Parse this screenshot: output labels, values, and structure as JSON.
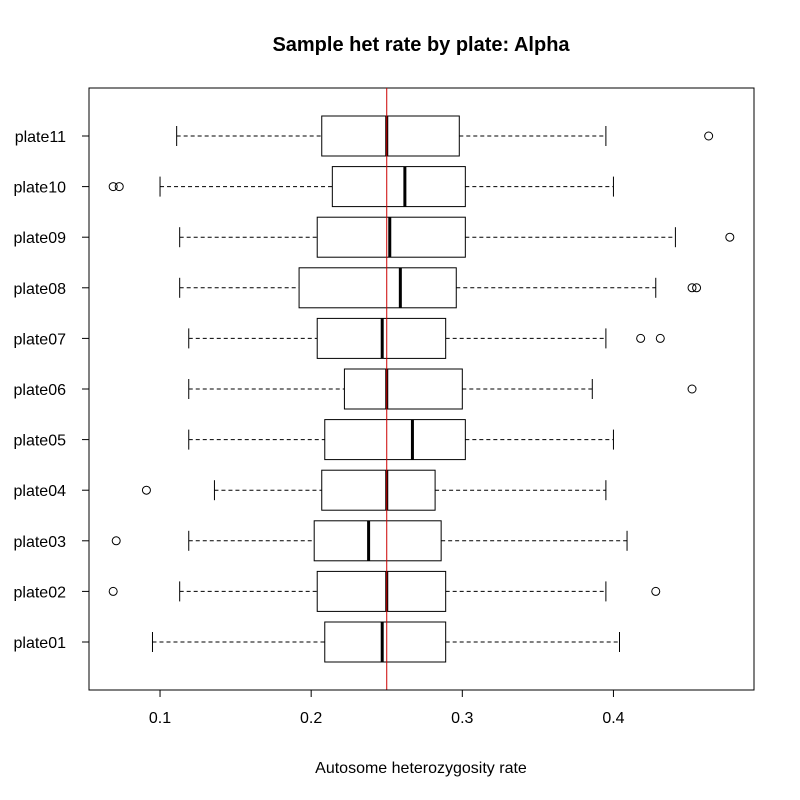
{
  "chart_data": {
    "type": "boxplot",
    "orientation": "horizontal",
    "title": "Sample het rate by plate:  Alpha",
    "xlabel": "Autosome heterozygosity rate",
    "ylabel": "",
    "xlim": [
      0.053,
      0.493
    ],
    "xticks": [
      0.1,
      0.2,
      0.3,
      0.4
    ],
    "xtick_labels": [
      "0.1",
      "0.2",
      "0.3",
      "0.4"
    ],
    "grid": false,
    "colors": {
      "reference_line": "#cc0000",
      "box_stroke": "#000000",
      "median": "#000000"
    },
    "reference_line": {
      "x": 0.25
    },
    "categories": [
      "plate01",
      "plate02",
      "plate03",
      "plate04",
      "plate05",
      "plate06",
      "plate07",
      "plate08",
      "plate09",
      "plate10",
      "plate11"
    ],
    "boxes": [
      {
        "label": "plate01",
        "whisker_low": 0.095,
        "q1": 0.209,
        "median": 0.247,
        "q3": 0.289,
        "whisker_high": 0.404,
        "outliers": []
      },
      {
        "label": "plate02",
        "whisker_low": 0.113,
        "q1": 0.204,
        "median": 0.25,
        "q3": 0.289,
        "whisker_high": 0.395,
        "outliers": [
          0.069,
          0.428
        ]
      },
      {
        "label": "plate03",
        "whisker_low": 0.119,
        "q1": 0.202,
        "median": 0.238,
        "q3": 0.286,
        "whisker_high": 0.409,
        "outliers": [
          0.071
        ]
      },
      {
        "label": "plate04",
        "whisker_low": 0.136,
        "q1": 0.207,
        "median": 0.25,
        "q3": 0.282,
        "whisker_high": 0.395,
        "outliers": [
          0.091
        ]
      },
      {
        "label": "plate05",
        "whisker_low": 0.119,
        "q1": 0.209,
        "median": 0.267,
        "q3": 0.302,
        "whisker_high": 0.4,
        "outliers": []
      },
      {
        "label": "plate06",
        "whisker_low": 0.119,
        "q1": 0.222,
        "median": 0.25,
        "q3": 0.3,
        "whisker_high": 0.386,
        "outliers": [
          0.452
        ]
      },
      {
        "label": "plate07",
        "whisker_low": 0.119,
        "q1": 0.204,
        "median": 0.247,
        "q3": 0.289,
        "whisker_high": 0.395,
        "outliers": [
          0.418,
          0.431
        ]
      },
      {
        "label": "plate08",
        "whisker_low": 0.113,
        "q1": 0.192,
        "median": 0.259,
        "q3": 0.296,
        "whisker_high": 0.428,
        "outliers": [
          0.452,
          0.455
        ]
      },
      {
        "label": "plate09",
        "whisker_low": 0.113,
        "q1": 0.204,
        "median": 0.252,
        "q3": 0.302,
        "whisker_high": 0.441,
        "outliers": [
          0.477
        ]
      },
      {
        "label": "plate10",
        "whisker_low": 0.1,
        "q1": 0.214,
        "median": 0.262,
        "q3": 0.302,
        "whisker_high": 0.4,
        "outliers": [
          0.069,
          0.073
        ]
      },
      {
        "label": "plate11",
        "whisker_low": 0.111,
        "q1": 0.207,
        "median": 0.25,
        "q3": 0.298,
        "whisker_high": 0.395,
        "outliers": [
          0.463
        ]
      }
    ]
  }
}
